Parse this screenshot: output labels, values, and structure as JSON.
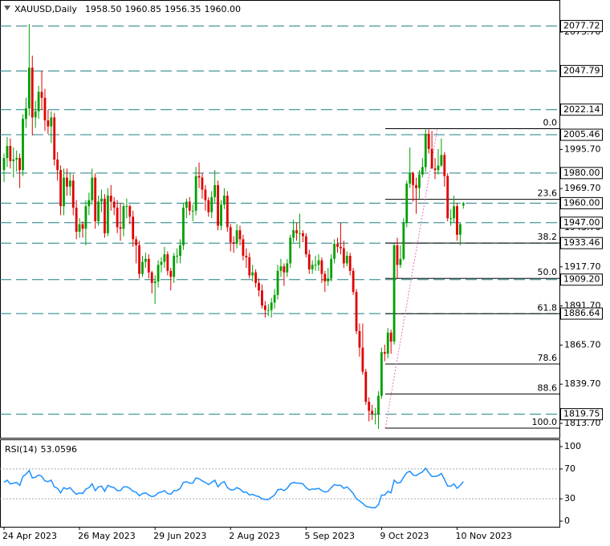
{
  "chart_data": [
    {
      "type": "candlestick",
      "symbol": "XAUUSD,Daily",
      "quote": [
        "1958.50",
        "1960.85",
        "1956.35",
        "1960.00"
      ],
      "up_color": "#00a000",
      "down_color": "#e00000",
      "level_color": "#1f7f86",
      "ylim": [
        1804.1,
        2095.0
      ],
      "yticks": [
        {
          "value": 2073.7,
          "label": "2073.70"
        },
        {
          "value": 1995.7,
          "label": "1995.70"
        },
        {
          "value": 1969.7,
          "label": "1969.70"
        },
        {
          "value": 1943.7,
          "label": "1943.70"
        },
        {
          "value": 1917.7,
          "label": "1917.70"
        },
        {
          "value": 1891.7,
          "label": "1891.70"
        },
        {
          "value": 1865.7,
          "label": "1865.70"
        },
        {
          "value": 1839.7,
          "label": "1839.70"
        },
        {
          "value": 1813.7,
          "label": "1813.70"
        }
      ],
      "levels": [
        {
          "value": 2077.72,
          "label": "2077.72"
        },
        {
          "value": 2047.79,
          "label": "2047.79"
        },
        {
          "value": 2022.14,
          "label": "2022.14"
        },
        {
          "value": 2005.46,
          "label": "2005.46"
        },
        {
          "value": 1980,
          "label": "1980.00"
        },
        {
          "value": 1960,
          "label": "1960.00"
        },
        {
          "value": 1947,
          "label": "1947.00"
        },
        {
          "value": 1933.46,
          "label": "1933.46"
        },
        {
          "value": 1909.2,
          "label": "1909.20"
        },
        {
          "value": 1886.64,
          "label": "1886.64"
        },
        {
          "value": 1819.75,
          "label": "1819.75"
        }
      ],
      "fib": [
        {
          "value": 2009.5,
          "label": "0.0"
        },
        {
          "value": 1962.54,
          "label": "23.6"
        },
        {
          "value": 1933.48,
          "label": "38.2"
        },
        {
          "value": 1910,
          "label": "50.0"
        },
        {
          "value": 1886.52,
          "label": "61.8"
        },
        {
          "value": 1853.1,
          "label": "78.6"
        },
        {
          "value": 1833.2,
          "label": "88.6"
        },
        {
          "value": 1810.5,
          "label": "100.0"
        }
      ],
      "categories": [
        "24 Apr 2023",
        null,
        null,
        null,
        null,
        null,
        null,
        null,
        null,
        null,
        null,
        null,
        null,
        null,
        null,
        null,
        null,
        null,
        null,
        null,
        null,
        null,
        null,
        null,
        "26 May 2023",
        null,
        null,
        null,
        null,
        null,
        null,
        null,
        null,
        null,
        null,
        null,
        null,
        null,
        null,
        null,
        null,
        null,
        null,
        null,
        null,
        null,
        null,
        null,
        "29 Jun 2023",
        null,
        null,
        null,
        null,
        null,
        null,
        null,
        null,
        null,
        null,
        null,
        null,
        null,
        null,
        null,
        null,
        null,
        null,
        null,
        null,
        null,
        null,
        null,
        "2 Aug 2023",
        null,
        null,
        null,
        null,
        null,
        null,
        null,
        null,
        null,
        null,
        null,
        null,
        null,
        null,
        null,
        null,
        null,
        null,
        null,
        null,
        null,
        null,
        null,
        "5 Sep 2023",
        null,
        null,
        null,
        null,
        null,
        null,
        null,
        null,
        null,
        null,
        null,
        null,
        null,
        null,
        null,
        null,
        null,
        null,
        null,
        null,
        null,
        null,
        null,
        "9 Oct 2023",
        null,
        null,
        null,
        null,
        null,
        null,
        null,
        null,
        null,
        null,
        null,
        null,
        null,
        null,
        null,
        null,
        null,
        null,
        null,
        null,
        null,
        null,
        null,
        "10 Nov 2023",
        null,
        null
      ],
      "candles": [
        [
          1982,
          1993,
          1974,
          1990
        ],
        [
          1990,
          2004,
          1984,
          1998
        ],
        [
          1998,
          2003,
          1983,
          1988
        ],
        [
          1988,
          1997,
          1977,
          1989
        ],
        [
          1989,
          1995,
          1981,
          1990
        ],
        [
          1990,
          1993,
          1970,
          1982
        ],
        [
          1982,
          2019,
          1978,
          2016
        ],
        [
          2016,
          2030,
          2010,
          2023
        ],
        [
          2023,
          2079,
          2018,
          2050
        ],
        [
          2050,
          2058,
          2005,
          2017
        ],
        [
          2017,
          2028,
          2010,
          2021
        ],
        [
          2021,
          2038,
          2016,
          2034
        ],
        [
          2034,
          2048,
          2022,
          2030
        ],
        [
          2030,
          2036,
          2008,
          2015
        ],
        [
          2015,
          2022,
          2006,
          2011
        ],
        [
          2011,
          2021,
          2000,
          2017
        ],
        [
          2017,
          2020,
          1985,
          1989
        ],
        [
          1989,
          1994,
          1975,
          1982
        ],
        [
          1982,
          1985,
          1952,
          1958
        ],
        [
          1958,
          1983,
          1952,
          1977
        ],
        [
          1977,
          1983,
          1965,
          1971
        ],
        [
          1971,
          1980,
          1965,
          1975
        ],
        [
          1975,
          1979,
          1952,
          1957
        ],
        [
          1957,
          1962,
          1936,
          1941
        ],
        [
          1941,
          1950,
          1937,
          1946
        ],
        [
          1946,
          1948,
          1937,
          1943
        ],
        [
          1943,
          1962,
          1932,
          1958
        ],
        [
          1958,
          1967,
          1952,
          1962
        ],
        [
          1962,
          1983,
          1959,
          1977
        ],
        [
          1977,
          1980,
          1943,
          1948
        ],
        [
          1948,
          1965,
          1945,
          1961
        ],
        [
          1961,
          1969,
          1954,
          1963
        ],
        [
          1963,
          1966,
          1937,
          1940
        ],
        [
          1940,
          1970,
          1938,
          1965
        ],
        [
          1965,
          1972,
          1955,
          1961
        ],
        [
          1961,
          1964,
          1952,
          1957
        ],
        [
          1957,
          1962,
          1940,
          1944
        ],
        [
          1944,
          1960,
          1935,
          1943
        ],
        [
          1943,
          1960,
          1938,
          1958
        ],
        [
          1958,
          1963,
          1950,
          1958
        ],
        [
          1958,
          1959,
          1946,
          1951
        ],
        [
          1951,
          1955,
          1931,
          1936
        ],
        [
          1936,
          1938,
          1920,
          1932
        ],
        [
          1932,
          1935,
          1910,
          1913
        ],
        [
          1913,
          1925,
          1911,
          1921
        ],
        [
          1921,
          1927,
          1917,
          1923
        ],
        [
          1923,
          1926,
          1910,
          1914
        ],
        [
          1914,
          1915,
          1900,
          1907
        ],
        [
          1907,
          1912,
          1893,
          1908
        ],
        [
          1908,
          1922,
          1904,
          1919
        ],
        [
          1919,
          1924,
          1914,
          1921
        ],
        [
          1921,
          1931,
          1917,
          1926
        ],
        [
          1926,
          1928,
          1912,
          1915
        ],
        [
          1915,
          1917,
          1902,
          1911
        ],
        [
          1911,
          1927,
          1907,
          1925
        ],
        [
          1925,
          1930,
          1920,
          1925
        ],
        [
          1925,
          1936,
          1920,
          1932
        ],
        [
          1932,
          1960,
          1929,
          1957
        ],
        [
          1957,
          1963,
          1950,
          1961
        ],
        [
          1961,
          1964,
          1952,
          1955
        ],
        [
          1955,
          1959,
          1948,
          1955
        ],
        [
          1955,
          1984,
          1952,
          1978
        ],
        [
          1978,
          1987,
          1970,
          1977
        ],
        [
          1977,
          1980,
          1963,
          1969
        ],
        [
          1969,
          1972,
          1955,
          1962
        ],
        [
          1962,
          1964,
          1951,
          1954
        ],
        [
          1954,
          1968,
          1950,
          1964
        ],
        [
          1964,
          1982,
          1960,
          1972
        ],
        [
          1972,
          1975,
          1942,
          1945
        ],
        [
          1945,
          1962,
          1942,
          1959
        ],
        [
          1959,
          1970,
          1956,
          1965
        ],
        [
          1965,
          1968,
          1941,
          1944
        ],
        [
          1944,
          1946,
          1928,
          1934
        ],
        [
          1934,
          1938,
          1927,
          1933
        ],
        [
          1933,
          1946,
          1930,
          1942
        ],
        [
          1942,
          1945,
          1932,
          1936
        ],
        [
          1936,
          1939,
          1922,
          1925
        ],
        [
          1925,
          1930,
          1917,
          1924
        ],
        [
          1924,
          1927,
          1910,
          1912
        ],
        [
          1912,
          1919,
          1908,
          1914
        ],
        [
          1914,
          1916,
          1904,
          1907
        ],
        [
          1907,
          1910,
          1898,
          1902
        ],
        [
          1902,
          1906,
          1890,
          1892
        ],
        [
          1892,
          1895,
          1884,
          1889
        ],
        [
          1889,
          1893,
          1885,
          1889
        ],
        [
          1889,
          1897,
          1884,
          1894
        ],
        [
          1894,
          1903,
          1890,
          1899
        ],
        [
          1899,
          1919,
          1896,
          1915
        ],
        [
          1915,
          1923,
          1911,
          1918
        ],
        [
          1918,
          1920,
          1905,
          1914
        ],
        [
          1914,
          1923,
          1911,
          1920
        ],
        [
          1920,
          1939,
          1917,
          1937
        ],
        [
          1937,
          1949,
          1934,
          1942
        ],
        [
          1942,
          1947,
          1935,
          1940
        ],
        [
          1940,
          1953,
          1930,
          1940
        ],
        [
          1940,
          1942,
          1934,
          1938
        ],
        [
          1938,
          1940,
          1924,
          1926
        ],
        [
          1926,
          1929,
          1913,
          1916
        ],
        [
          1916,
          1922,
          1913,
          1919
        ],
        [
          1919,
          1925,
          1915,
          1919
        ],
        [
          1919,
          1926,
          1915,
          1922
        ],
        [
          1922,
          1924,
          1907,
          1913
        ],
        [
          1913,
          1915,
          1901,
          1908
        ],
        [
          1908,
          1917,
          1905,
          1910
        ],
        [
          1910,
          1926,
          1908,
          1923
        ],
        [
          1923,
          1936,
          1920,
          1933
        ],
        [
          1933,
          1937,
          1927,
          1931
        ],
        [
          1931,
          1947,
          1926,
          1930
        ],
        [
          1930,
          1935,
          1917,
          1920
        ],
        [
          1920,
          1928,
          1918,
          1925
        ],
        [
          1925,
          1927,
          1912,
          1915
        ],
        [
          1915,
          1917,
          1899,
          1901
        ],
        [
          1901,
          1903,
          1873,
          1875
        ],
        [
          1875,
          1880,
          1858,
          1864
        ],
        [
          1864,
          1880,
          1846,
          1848
        ],
        [
          1848,
          1850,
          1826,
          1828
        ],
        [
          1828,
          1831,
          1815,
          1822
        ],
        [
          1822,
          1826,
          1816,
          1820
        ],
        [
          1820,
          1824,
          1813,
          1820
        ],
        [
          1820,
          1835,
          1810,
          1832
        ],
        [
          1832,
          1864,
          1830,
          1861
        ],
        [
          1861,
          1866,
          1855,
          1860
        ],
        [
          1860,
          1877,
          1857,
          1874
        ],
        [
          1874,
          1876,
          1860,
          1868
        ],
        [
          1868,
          1933,
          1866,
          1932
        ],
        [
          1932,
          1937,
          1910,
          1919
        ],
        [
          1919,
          1932,
          1917,
          1923
        ],
        [
          1923,
          1950,
          1922,
          1947
        ],
        [
          1947,
          1975,
          1944,
          1973
        ],
        [
          1973,
          1997,
          1970,
          1980
        ],
        [
          1980,
          1981,
          1961,
          1972
        ],
        [
          1972,
          1977,
          1953,
          1970
        ],
        [
          1970,
          1982,
          1963,
          1979
        ],
        [
          1979,
          1990,
          1977,
          1984
        ],
        [
          1984,
          2009,
          1981,
          2006
        ],
        [
          2006,
          2009,
          1993,
          1996
        ],
        [
          1996,
          2008,
          1983,
          1983
        ],
        [
          1983,
          1990,
          1976,
          1982
        ],
        [
          1982,
          1996,
          1979,
          1985
        ],
        [
          1985,
          2003,
          1984,
          1992
        ],
        [
          1992,
          1994,
          1971,
          1978
        ],
        [
          1978,
          1980,
          1948,
          1950
        ],
        [
          1950,
          1956,
          1945,
          1950
        ],
        [
          1950,
          1965,
          1947,
          1958
        ],
        [
          1958,
          1960,
          1935,
          1939
        ],
        [
          1939,
          1947,
          1932,
          1946
        ],
        [
          1958.5,
          1960.85,
          1956.35,
          1960
        ]
      ]
    },
    {
      "type": "line",
      "title": "RSI(14)",
      "color": "#1e90ff",
      "ylim": [
        -7.5,
        109.7
      ],
      "yticks": [
        100,
        70,
        30,
        0
      ],
      "levels": [
        70,
        30
      ],
      "values": [
        52,
        55,
        50,
        51,
        52,
        48,
        60,
        63,
        68,
        58,
        59,
        62,
        60,
        54,
        53,
        55,
        46,
        44,
        38,
        45,
        43,
        45,
        40,
        36,
        38,
        37,
        43,
        45,
        50,
        41,
        46,
        47,
        40,
        48,
        46,
        45,
        41,
        41,
        46,
        46,
        44,
        40,
        39,
        34,
        37,
        38,
        35,
        33,
        34,
        38,
        39,
        41,
        37,
        36,
        41,
        41,
        44,
        52,
        53,
        51,
        51,
        58,
        57,
        54,
        52,
        49,
        52,
        55,
        46,
        51,
        53,
        45,
        42,
        42,
        45,
        43,
        39,
        39,
        35,
        36,
        34,
        33,
        30,
        29,
        29,
        32,
        35,
        42,
        43,
        41,
        44,
        50,
        52,
        51,
        51,
        50,
        45,
        42,
        43,
        43,
        44,
        41,
        39,
        40,
        45,
        49,
        48,
        48,
        44,
        46,
        42,
        37,
        30,
        27,
        24,
        20,
        19,
        18,
        18,
        22,
        35,
        35,
        40,
        38,
        55,
        51,
        52,
        59,
        65,
        67,
        62,
        61,
        64,
        66,
        71,
        65,
        60,
        60,
        61,
        64,
        56,
        47,
        47,
        50,
        44,
        48,
        53.0596
      ]
    }
  ]
}
